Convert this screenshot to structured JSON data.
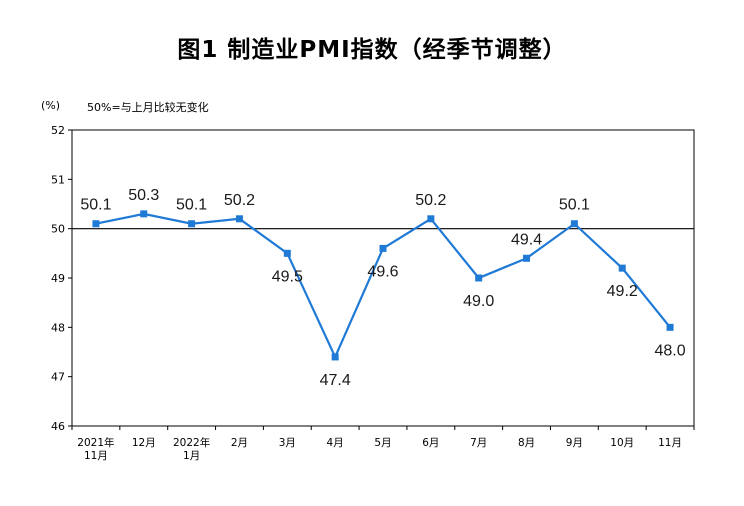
{
  "title": "图1 制造业PMI指数（经季节调整）",
  "chart_data": {
    "type": "line",
    "unit_label": "(%)",
    "note": "50%=与上月比较无变化",
    "categories": [
      [
        "2021年",
        "11月"
      ],
      [
        "12月"
      ],
      [
        "2022年",
        "1月"
      ],
      [
        "2月"
      ],
      [
        "3月"
      ],
      [
        "4月"
      ],
      [
        "5月"
      ],
      [
        "6月"
      ],
      [
        "7月"
      ],
      [
        "8月"
      ],
      [
        "9月"
      ],
      [
        "10月"
      ],
      [
        "11月"
      ]
    ],
    "series": [
      {
        "values": [
          50.1,
          50.3,
          50.1,
          50.2,
          49.5,
          47.4,
          49.6,
          50.2,
          49.0,
          49.4,
          50.1,
          49.2,
          48.0
        ]
      }
    ],
    "value_labels": [
      "50.1",
      "50.3",
      "50.1",
      "50.2",
      "49.5",
      "47.4",
      "49.6",
      "50.2",
      "49.0",
      "49.4",
      "50.1",
      "49.2",
      "48.0"
    ],
    "label_positions": [
      "above",
      "above",
      "above",
      "above",
      "below",
      "below",
      "below",
      "above",
      "below",
      "above",
      "above",
      "below",
      "below"
    ],
    "yticks": [
      "46",
      "47",
      "48",
      "49",
      "50",
      "51",
      "52"
    ],
    "ylim": [
      46,
      52
    ],
    "reference_line": 50,
    "grid": false,
    "line_color": "#1f7ad6"
  }
}
